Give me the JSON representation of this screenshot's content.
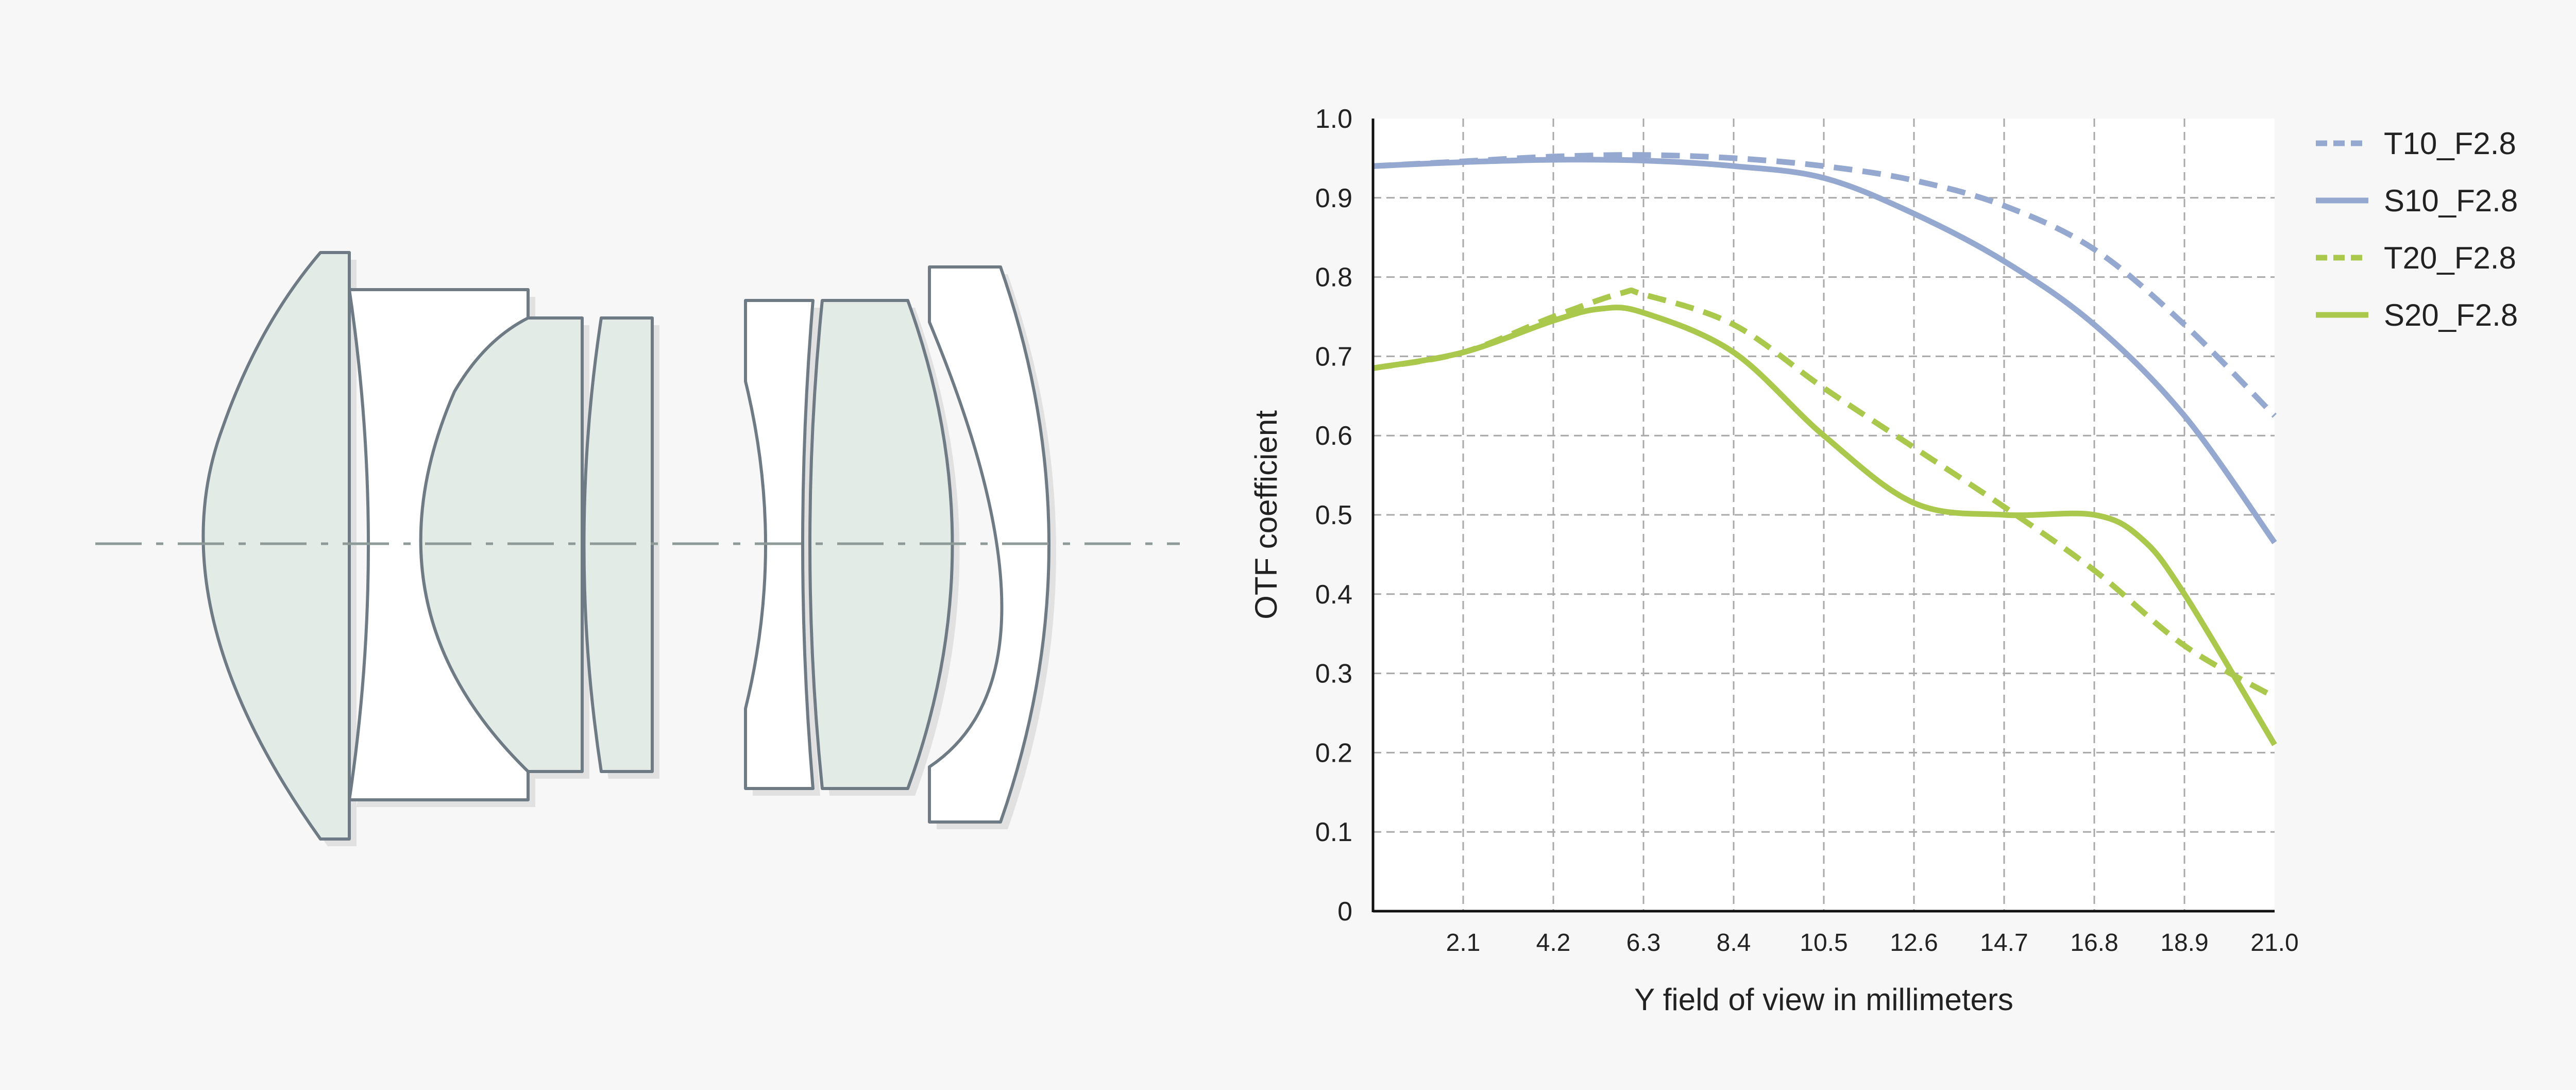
{
  "diagram": {
    "elements": [
      "lens-element-1",
      "lens-element-2",
      "lens-element-3",
      "lens-element-4",
      "lens-element-5",
      "lens-element-6",
      "lens-element-7"
    ],
    "colors": {
      "tinted_glass": "#e3ebe7",
      "clear_glass": "#ffffff",
      "outline": "#6f7b84",
      "shadow": "#e1e1e1",
      "optical_axis": "#8e9a98"
    }
  },
  "chart_data": {
    "type": "line",
    "title": "",
    "xlabel": "Y field of view in millimeters",
    "ylabel": "OTF coefficient",
    "xlim": [
      0,
      21.0
    ],
    "ylim": [
      0,
      1.0
    ],
    "x_ticks": [
      "2.1",
      "4.2",
      "6.3",
      "8.4",
      "10.5",
      "12.6",
      "14.7",
      "16.8",
      "18.9",
      "21.0"
    ],
    "y_ticks": [
      "0",
      "0.1",
      "0.2",
      "0.3",
      "0.4",
      "0.5",
      "0.6",
      "0.7",
      "0.8",
      "0.9",
      "1.0"
    ],
    "grid": true,
    "legend_position": "top-right",
    "series": [
      {
        "name": "T10_F2.8",
        "style": "dashed",
        "color": "#95a8d0",
        "points": [
          [
            0,
            0.94
          ],
          [
            2.1,
            0.946
          ],
          [
            4.2,
            0.952
          ],
          [
            6.3,
            0.954
          ],
          [
            8.4,
            0.95
          ],
          [
            10.5,
            0.94
          ],
          [
            12.6,
            0.922
          ],
          [
            14.7,
            0.89
          ],
          [
            16.8,
            0.835
          ],
          [
            18.9,
            0.74
          ],
          [
            21.0,
            0.625
          ]
        ]
      },
      {
        "name": "S10_F2.8",
        "style": "solid",
        "color": "#95a8d0",
        "points": [
          [
            0,
            0.94
          ],
          [
            2.1,
            0.945
          ],
          [
            4.2,
            0.948
          ],
          [
            6.3,
            0.947
          ],
          [
            8.4,
            0.94
          ],
          [
            10.5,
            0.925
          ],
          [
            12.6,
            0.88
          ],
          [
            14.7,
            0.82
          ],
          [
            16.8,
            0.74
          ],
          [
            18.9,
            0.625
          ],
          [
            21.0,
            0.465
          ]
        ]
      },
      {
        "name": "T20_F2.8",
        "style": "dashed",
        "color": "#a9c84c",
        "points": [
          [
            0,
            0.685
          ],
          [
            2.1,
            0.705
          ],
          [
            4.2,
            0.75
          ],
          [
            5.8,
            0.78
          ],
          [
            6.3,
            0.778
          ],
          [
            8.4,
            0.74
          ],
          [
            10.5,
            0.66
          ],
          [
            12.6,
            0.585
          ],
          [
            14.7,
            0.51
          ],
          [
            16.8,
            0.43
          ],
          [
            18.9,
            0.335
          ],
          [
            21.0,
            0.27
          ]
        ]
      },
      {
        "name": "S20_F2.8",
        "style": "solid",
        "color": "#a9c84c",
        "points": [
          [
            0,
            0.685
          ],
          [
            2.1,
            0.705
          ],
          [
            4.2,
            0.745
          ],
          [
            5.3,
            0.76
          ],
          [
            6.3,
            0.755
          ],
          [
            8.4,
            0.705
          ],
          [
            10.5,
            0.6
          ],
          [
            12.6,
            0.515
          ],
          [
            14.7,
            0.5
          ],
          [
            16.8,
            0.5
          ],
          [
            17.9,
            0.47
          ],
          [
            18.9,
            0.4
          ],
          [
            21.0,
            0.21
          ]
        ]
      }
    ]
  }
}
